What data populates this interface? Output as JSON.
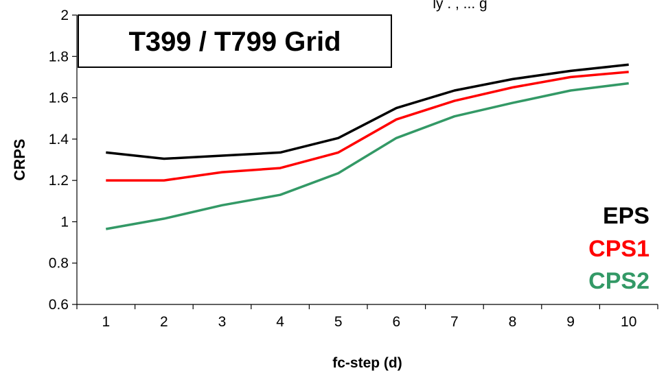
{
  "chart_data": {
    "type": "line",
    "title": "T399 / T799 Grid",
    "partial_title": "ly . , ... g",
    "xlabel": "fc-step (d)",
    "ylabel": "CRPS",
    "categories": [
      "1",
      "2",
      "3",
      "4",
      "5",
      "6",
      "7",
      "8",
      "9",
      "10"
    ],
    "x": [
      1,
      2,
      3,
      4,
      5,
      6,
      7,
      8,
      9,
      10
    ],
    "ylim": [
      0.6,
      2.0
    ],
    "yticks": [
      "0.6",
      "0.8",
      "1",
      "1.2",
      "1.4",
      "1.6",
      "1.8",
      "2"
    ],
    "ytick_values": [
      0.6,
      0.8,
      1.0,
      1.2,
      1.4,
      1.6,
      1.8,
      2.0
    ],
    "grid": false,
    "legend_position": "bottom-right",
    "series": [
      {
        "name": "EPS",
        "color": "#000000",
        "values": [
          1.335,
          1.305,
          1.32,
          1.335,
          1.405,
          1.55,
          1.635,
          1.69,
          1.73,
          1.76
        ]
      },
      {
        "name": "CPS1",
        "color": "#ff0000",
        "values": [
          1.2,
          1.2,
          1.24,
          1.26,
          1.335,
          1.495,
          1.585,
          1.65,
          1.7,
          1.725
        ]
      },
      {
        "name": "CPS2",
        "color": "#339966",
        "values": [
          0.965,
          1.015,
          1.08,
          1.13,
          1.235,
          1.405,
          1.51,
          1.575,
          1.635,
          1.67
        ]
      }
    ]
  }
}
